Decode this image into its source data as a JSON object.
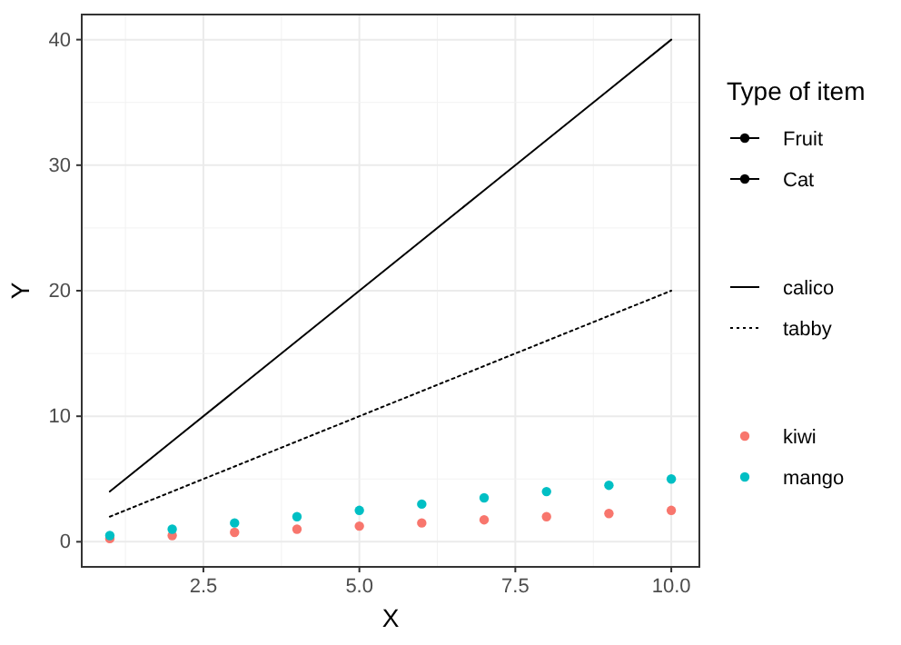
{
  "chart_data": {
    "type": "line",
    "xlabel": "X",
    "ylabel": "Y",
    "legend_title": "Type of item",
    "legend": "right",
    "grid": true,
    "x": [
      1,
      2,
      3,
      4,
      5,
      6,
      7,
      8,
      9,
      10
    ],
    "xlim": [
      0.55,
      10.45
    ],
    "xticks": [
      {
        "value": 2.5,
        "label": "2.5"
      },
      {
        "value": 5,
        "label": "5.0"
      },
      {
        "value": 7.5,
        "label": "7.5"
      },
      {
        "value": 10,
        "label": "10.0"
      }
    ],
    "ylim": [
      -2,
      42
    ],
    "yticks": [
      0,
      10,
      20,
      30,
      40
    ],
    "series": [
      {
        "name": "Fruit",
        "type": "line",
        "marker": "circle",
        "line_style": "solid",
        "color": "#000000",
        "values": [
          null,
          null,
          null,
          null,
          null,
          null,
          null,
          null,
          null,
          null
        ]
      },
      {
        "name": "Cat",
        "type": "line",
        "marker": "circle",
        "line_style": "solid",
        "color": "#000000",
        "values": [
          null,
          null,
          null,
          null,
          null,
          null,
          null,
          null,
          null,
          null
        ]
      },
      {
        "name": "calico",
        "type": "line",
        "marker": "none",
        "line_style": "solid",
        "color": "#000000",
        "values": [
          4,
          8,
          12,
          16,
          20,
          24,
          28,
          32,
          36,
          40
        ]
      },
      {
        "name": "tabby",
        "type": "line",
        "marker": "none",
        "line_style": "dotted",
        "color": "#000000",
        "values": [
          2,
          4,
          6,
          8,
          10,
          12,
          14,
          16,
          18,
          20
        ]
      },
      {
        "name": "kiwi",
        "type": "scatter",
        "marker": "circle",
        "color": "#f8766d",
        "values": [
          0.25,
          0.5,
          0.75,
          1,
          1.25,
          1.5,
          1.75,
          2,
          2.25,
          2.5
        ]
      },
      {
        "name": "mango",
        "type": "scatter",
        "marker": "circle",
        "color": "#00bfc4",
        "values": [
          0.5,
          1,
          1.5,
          2,
          2.5,
          3,
          3.5,
          4,
          4.5,
          5
        ]
      }
    ]
  }
}
